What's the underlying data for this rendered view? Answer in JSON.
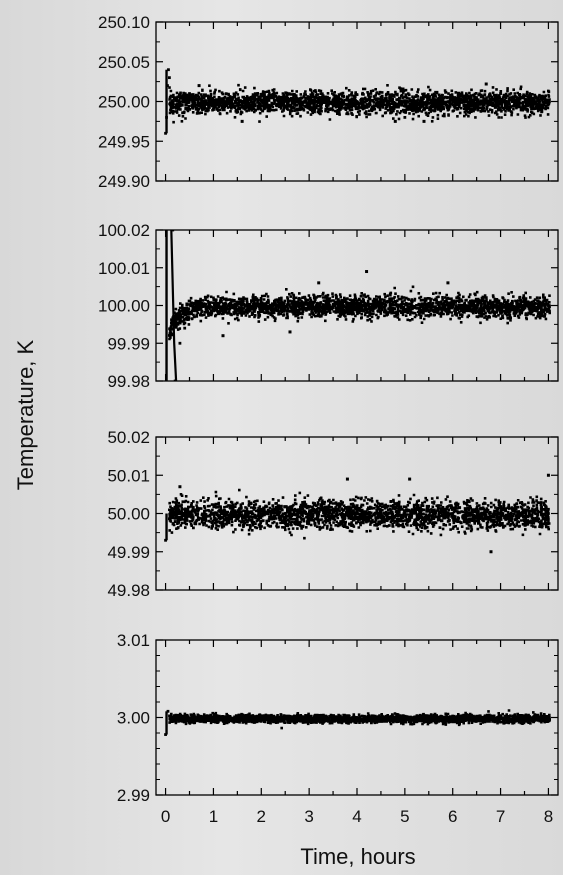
{
  "figure": {
    "ylabel": "Temperature, K",
    "xlabel": "Time, hours",
    "background": "#e2e2e2",
    "ink": "#000000"
  },
  "chart_data": [
    {
      "type": "scatter",
      "setpoint": 250.0,
      "ylim": [
        249.9,
        250.1
      ],
      "yticks": [
        "250.10",
        "250.05",
        "250.00",
        "249.95",
        "249.90"
      ],
      "xlim": [
        -0.2,
        8.2
      ],
      "noise_sd": 0.007,
      "points": [
        [
          0.0,
          249.96
        ],
        [
          0.02,
          249.98
        ],
        [
          0.04,
          250.02
        ],
        [
          0.06,
          250.04
        ],
        [
          0.08,
          250.03
        ],
        [
          0.5,
          250.01
        ],
        [
          1.0,
          249.99
        ],
        [
          2.0,
          250.0
        ],
        [
          3.0,
          250.0
        ],
        [
          4.0,
          250.0
        ],
        [
          5.0,
          249.98
        ],
        [
          6.0,
          250.0
        ],
        [
          7.0,
          250.01
        ],
        [
          8.0,
          250.0
        ]
      ],
      "outliers": [
        [
          4.8,
          249.975
        ],
        [
          5.4,
          249.975
        ],
        [
          1.6,
          249.975
        ],
        [
          6.7,
          250.022
        ],
        [
          0.7,
          250.02
        ]
      ],
      "grid": false
    },
    {
      "type": "scatter",
      "setpoint": 100.0,
      "ylim": [
        99.98,
        100.02
      ],
      "yticks": [
        "100.02",
        "100.01",
        "100.00",
        "99.99",
        "99.98"
      ],
      "xlim": [
        -0.2,
        8.2
      ],
      "noise_sd": 0.0014,
      "points": [
        [
          0.15,
          100.02
        ],
        [
          0.2,
          99.98
        ],
        [
          0.3,
          99.99
        ],
        [
          0.4,
          99.994
        ],
        [
          0.6,
          99.997
        ],
        [
          1.0,
          99.999
        ],
        [
          2.0,
          100.0
        ],
        [
          4.0,
          100.0
        ],
        [
          6.0,
          100.0
        ],
        [
          8.0,
          100.0
        ]
      ],
      "outliers": [
        [
          3.2,
          100.006
        ],
        [
          4.2,
          100.009
        ],
        [
          5.9,
          100.006
        ],
        [
          1.2,
          99.992
        ],
        [
          2.6,
          99.993
        ]
      ],
      "grid": false
    },
    {
      "type": "scatter",
      "setpoint": 50.0,
      "ylim": [
        49.98,
        50.02
      ],
      "yticks": [
        "50.02",
        "50.01",
        "50.00",
        "49.99",
        "49.98"
      ],
      "xlim": [
        -0.2,
        8.2
      ],
      "noise_sd": 0.0018,
      "points": [
        [
          0.0,
          49.993
        ],
        [
          1.0,
          50.0
        ],
        [
          2.0,
          50.0
        ],
        [
          3.0,
          50.0
        ],
        [
          4.0,
          50.0
        ],
        [
          5.0,
          50.0
        ],
        [
          6.0,
          50.0
        ],
        [
          7.0,
          50.0
        ],
        [
          8.0,
          50.0
        ]
      ],
      "outliers": [
        [
          3.8,
          50.009
        ],
        [
          5.1,
          50.009
        ],
        [
          8.0,
          50.01
        ],
        [
          6.8,
          49.99
        ],
        [
          0.3,
          50.007
        ]
      ],
      "grid": false
    },
    {
      "type": "scatter",
      "setpoint": 3.0,
      "ylim": [
        2.99,
        3.01
      ],
      "yticks": [
        "3.01",
        "3.00",
        "2.99"
      ],
      "xlim": [
        -0.2,
        8.2
      ],
      "xticks": [
        "0",
        "1",
        "2",
        "3",
        "4",
        "5",
        "6",
        "7",
        "8"
      ],
      "noise_sd": 0.00025,
      "points": [
        [
          0.0,
          2.9978
        ],
        [
          0.05,
          3.0008
        ],
        [
          1.0,
          3.0
        ],
        [
          2.0,
          3.0
        ],
        [
          4.0,
          3.0
        ],
        [
          6.0,
          3.0
        ],
        [
          8.0,
          3.0
        ]
      ],
      "outliers": [],
      "grid": false
    }
  ]
}
